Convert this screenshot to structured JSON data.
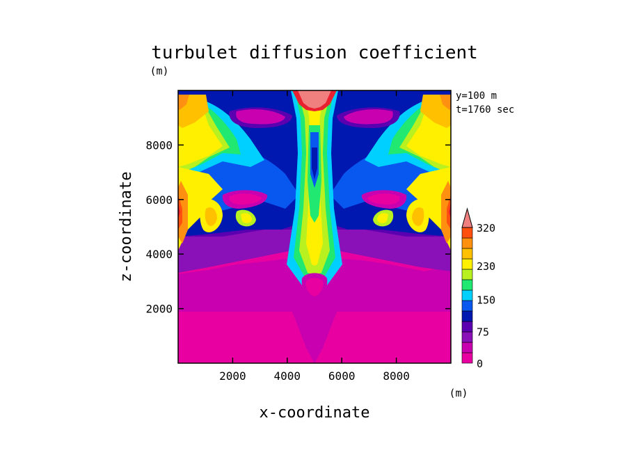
{
  "chart_data": {
    "type": "heatmap",
    "title": "turbulet diffusion coefficient",
    "xlabel": "x-coordinate",
    "ylabel": "z-coordinate",
    "x_unit": "(m)",
    "y_unit": "(m)",
    "annotations": [
      "y=100 m",
      "t=1760 sec"
    ],
    "xlim": [
      0,
      10000
    ],
    "ylim": [
      0,
      10000
    ],
    "x_ticks": [
      2000,
      4000,
      6000,
      8000
    ],
    "y_ticks": [
      2000,
      4000,
      6000,
      8000
    ],
    "colorbar": {
      "labels": [
        {
          "value": 320,
          "text": "320"
        },
        {
          "value": 230,
          "text": "230"
        },
        {
          "value": 150,
          "text": "150"
        },
        {
          "value": 75,
          "text": "75"
        },
        {
          "value": 0,
          "text": "0"
        }
      ],
      "levels": [
        0,
        25,
        50,
        75,
        100,
        125,
        150,
        175,
        200,
        230,
        260,
        290,
        320
      ],
      "colors": [
        "#e800a0",
        "#c800b0",
        "#8a10b8",
        "#5a00b0",
        "#0018b0",
        "#0858f0",
        "#00d0ff",
        "#20e870",
        "#b8f020",
        "#fff000",
        "#ffc000",
        "#ff9010",
        "#ff5010",
        "#e82030",
        "#f08080"
      ],
      "overflow_color": "#f08080"
    },
    "grid": false,
    "legend": "right"
  }
}
